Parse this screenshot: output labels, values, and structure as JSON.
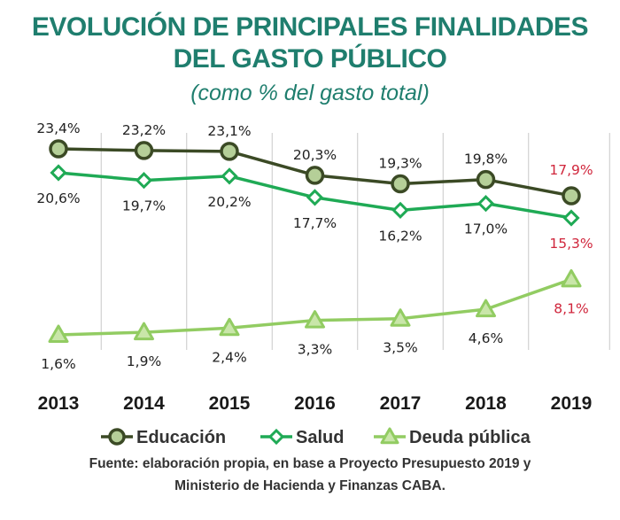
{
  "title_line1": "EVOLUCIÓN DE PRINCIPALES FINALIDADES",
  "title_line2": "DEL GASTO PÚBLICO",
  "subtitle": "(como % del gasto total)",
  "source_line1": "Fuente: elaboración propia, en base a Proyecto Presupuesto 2019 y",
  "source_line2": "Ministerio de Hacienda y Finanzas CABA.",
  "colors": {
    "title": "#1f7e6e",
    "highlight": "#d0263c",
    "grid": "#c8c8c8"
  },
  "chart_data": {
    "type": "line",
    "title": "EVOLUCIÓN DE PRINCIPALES FINALIDADES DEL GASTO PÚBLICO",
    "subtitle": "(como % del gasto total)",
    "xlabel": "",
    "ylabel": "",
    "categories": [
      "2013",
      "2014",
      "2015",
      "2016",
      "2017",
      "2018",
      "2019"
    ],
    "ylim": [
      0,
      25
    ],
    "grid": "vertical",
    "legend": "bottom",
    "series": [
      {
        "name": "Educación",
        "values": [
          23.4,
          23.2,
          23.1,
          20.3,
          19.3,
          19.8,
          17.9
        ],
        "labels": [
          "23,4%",
          "23,2%",
          "23,1%",
          "20,3%",
          "19,3%",
          "19,8%",
          "17,9%"
        ],
        "label_position": "above",
        "marker": "circle",
        "line_color": "#3b4a25",
        "marker_fill": "#b5cf98"
      },
      {
        "name": "Salud",
        "values": [
          20.6,
          19.7,
          20.2,
          17.7,
          16.2,
          17.0,
          15.3
        ],
        "labels": [
          "20,6%",
          "19,7%",
          "20,2%",
          "17,7%",
          "16,2%",
          "17,0%",
          "15,3%"
        ],
        "label_position": "below",
        "marker": "diamond",
        "line_color": "#1faa55",
        "marker_fill": "#ffffff"
      },
      {
        "name": "Deuda pública",
        "values": [
          1.6,
          1.9,
          2.4,
          3.3,
          3.5,
          4.6,
          8.1
        ],
        "labels": [
          "1,6%",
          "1,9%",
          "2,4%",
          "3,3%",
          "3,5%",
          "4,6%",
          "8,1%"
        ],
        "label_position": "below",
        "marker": "triangle",
        "line_color": "#92cc62",
        "marker_fill": "#c9e6a9"
      }
    ],
    "highlighted_category": "2019"
  }
}
